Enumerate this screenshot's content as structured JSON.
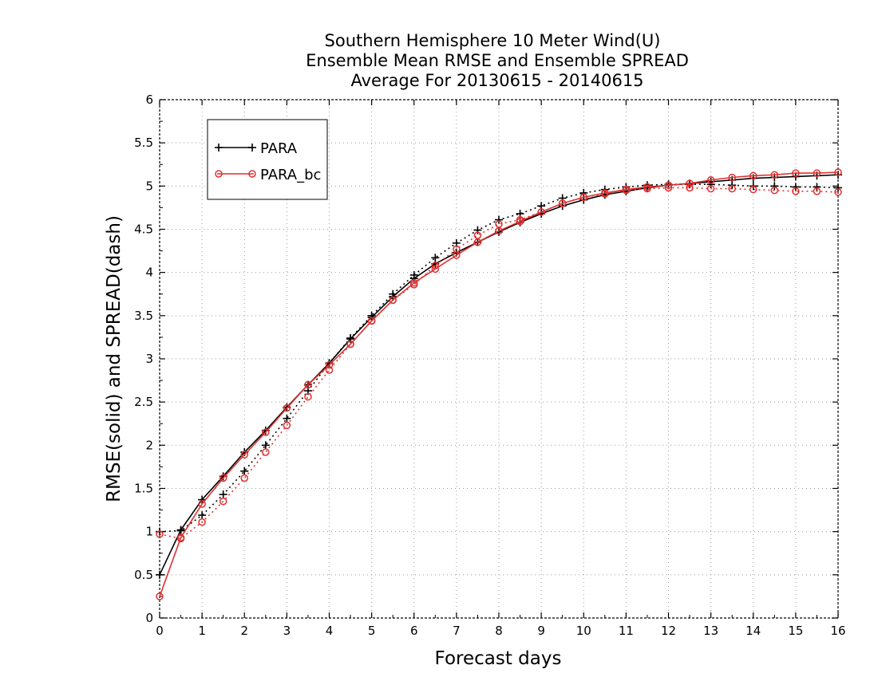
{
  "chart_data": {
    "type": "line",
    "title": [
      "Southern Hemisphere 10 Meter Wind(U)",
      "Ensemble Mean RMSE and Ensemble SPREAD",
      "Average For 20130615 - 20140615"
    ],
    "xlabel": "Forecast days",
    "ylabel": "RMSE(solid) and SPREAD(dash)",
    "xlim": [
      0,
      16
    ],
    "ylim": [
      0,
      6
    ],
    "xticks": [
      "0",
      "1",
      "2",
      "3",
      "4",
      "5",
      "6",
      "7",
      "8",
      "9",
      "10",
      "11",
      "12",
      "13",
      "14",
      "15",
      "16"
    ],
    "yticks": [
      "0",
      "0.5",
      "1",
      "1.5",
      "2",
      "2.5",
      "3",
      "3.5",
      "4",
      "4.5",
      "5",
      "5.5",
      "6"
    ],
    "grid": true,
    "legend_position": "top-left",
    "x": [
      0,
      0.5,
      1,
      1.5,
      2,
      2.5,
      3,
      3.5,
      4,
      4.5,
      5,
      5.5,
      6,
      6.5,
      7,
      7.5,
      8,
      8.5,
      9,
      9.5,
      10,
      10.5,
      11,
      11.5,
      12,
      12.5,
      13,
      13.5,
      14,
      14.5,
      15,
      15.5,
      16
    ],
    "series": [
      {
        "name": "PARA",
        "color": "#000000",
        "marker": "plus",
        "rmse": [
          0.5,
          1.02,
          1.37,
          1.64,
          1.92,
          2.17,
          2.44,
          2.7,
          2.95,
          3.23,
          3.48,
          3.72,
          3.93,
          4.1,
          4.23,
          4.35,
          4.47,
          4.58,
          4.68,
          4.77,
          4.84,
          4.9,
          4.94,
          4.98,
          5.01,
          5.03,
          5.05,
          5.07,
          5.09,
          5.1,
          5.11,
          5.12,
          5.13
        ],
        "spread": [
          1.0,
          1.01,
          1.19,
          1.43,
          1.7,
          2.0,
          2.31,
          2.63,
          2.95,
          3.24,
          3.5,
          3.75,
          3.97,
          4.17,
          4.34,
          4.49,
          4.61,
          4.68,
          4.77,
          4.86,
          4.92,
          4.96,
          4.99,
          5.01,
          5.02,
          5.02,
          5.02,
          5.01,
          5.0,
          5.0,
          4.99,
          4.99,
          4.98
        ]
      },
      {
        "name": "PARA_bc",
        "color": "#e03030",
        "marker": "circle",
        "rmse": [
          0.25,
          0.93,
          1.32,
          1.62,
          1.89,
          2.15,
          2.43,
          2.7,
          2.93,
          3.17,
          3.44,
          3.68,
          3.88,
          4.04,
          4.2,
          4.35,
          4.48,
          4.59,
          4.7,
          4.8,
          4.87,
          4.92,
          4.96,
          4.99,
          5.01,
          5.03,
          5.07,
          5.1,
          5.12,
          5.13,
          5.15,
          5.15,
          5.16
        ],
        "spread": [
          0.97,
          0.92,
          1.11,
          1.35,
          1.62,
          1.92,
          2.23,
          2.56,
          2.87,
          3.17,
          3.44,
          3.68,
          3.86,
          4.08,
          4.27,
          4.43,
          4.56,
          4.61,
          4.7,
          4.8,
          4.87,
          4.91,
          4.95,
          4.97,
          4.98,
          4.98,
          4.97,
          4.97,
          4.96,
          4.95,
          4.94,
          4.94,
          4.93
        ]
      }
    ]
  }
}
